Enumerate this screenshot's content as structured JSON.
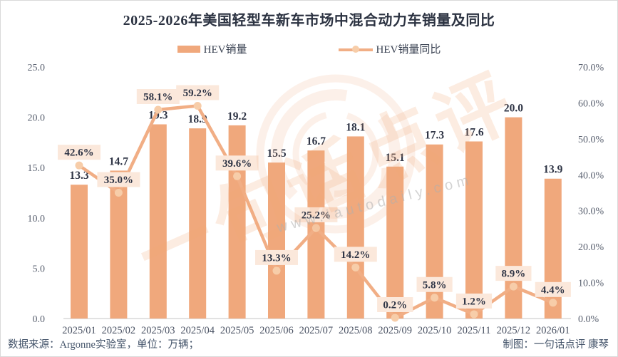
{
  "title": "2025-2026年美国轻型车新车市场中混合动力车销量及同比",
  "legend": {
    "bar_label": "HEV销量",
    "line_label": "HEV销量同比"
  },
  "footer": {
    "source": "数据来源：Argonne实验室，单位：万辆；",
    "credit": "制图：一句话点评  康琴"
  },
  "watermark": {
    "brand": "一句话点评",
    "site": "www.iautodaily.com"
  },
  "colors": {
    "bar": "#F0A87C",
    "line": "#F1AE85",
    "dot": "#F7CDA9",
    "label_box_bg": "#FBE8DB",
    "value_text": "#2E3445",
    "axis_text": "#5a6170",
    "axis_line": "#D9D9D9",
    "title_text": "#2c3342"
  },
  "chart_data": {
    "type": "bar+line combo",
    "title": "2025-2026年美国轻型车新车市场中混合动力车销量及同比",
    "categories": [
      "2025/01",
      "2025/02",
      "2025/03",
      "2025/04",
      "2025/05",
      "2025/06",
      "2025/07",
      "2025/08",
      "2025/09",
      "2025/10",
      "2025/11",
      "2025/12",
      "2026/01"
    ],
    "series": [
      {
        "name": "HEV销量",
        "type": "bar",
        "axis": "left",
        "unit": "万辆",
        "values": [
          13.3,
          14.7,
          19.3,
          18.9,
          19.2,
          15.5,
          16.7,
          18.1,
          15.1,
          17.3,
          17.6,
          20.0,
          13.9
        ],
        "labels": [
          "13.3",
          "14.7",
          "19.3",
          "18.9",
          "19.2",
          "15.5",
          "16.7",
          "18.1",
          "15.1",
          "17.3",
          "17.6",
          "20.0",
          "13.9"
        ]
      },
      {
        "name": "HEV销量同比",
        "type": "line",
        "axis": "right",
        "unit": "%",
        "values": [
          42.6,
          35.0,
          58.1,
          59.2,
          39.6,
          13.3,
          25.2,
          14.2,
          0.2,
          5.8,
          1.2,
          8.9,
          4.4
        ],
        "labels": [
          "42.6%",
          "35.0%",
          "58.1%",
          "59.2%",
          "39.6%",
          "13.3%",
          "25.2%",
          "14.2%",
          "0.2%",
          "5.8%",
          "1.2%",
          "8.9%",
          "4.4%"
        ]
      }
    ],
    "left_axis": {
      "min": 0,
      "max": 25,
      "step": 5,
      "ticks": [
        "0.0",
        "5.0",
        "10.0",
        "15.0",
        "20.0",
        "25.0"
      ]
    },
    "right_axis": {
      "min": 0,
      "max": 70,
      "step": 10,
      "ticks": [
        "0.0%",
        "10.0%",
        "20.0%",
        "30.0%",
        "40.0%",
        "50.0%",
        "60.0%",
        "70.0%"
      ]
    },
    "legend_position": "top",
    "grid": false
  }
}
